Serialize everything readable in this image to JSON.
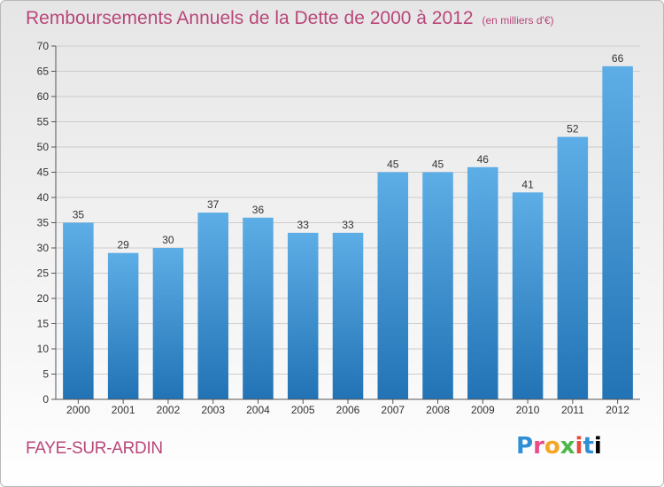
{
  "page": {
    "title": "Remboursements Annuels de la Dette de 2000 à 2012",
    "unit": "(en milliers d'€)",
    "commune": "FAYE-SUR-ARDIN",
    "logo": [
      "P",
      "r",
      "o",
      "x",
      "i",
      "t",
      "i"
    ]
  },
  "colors": {
    "title": "#b8477a",
    "bar_top": "#5dade6",
    "bar_bottom": "#2273b5",
    "grid": "#cccccc"
  },
  "chart_data": {
    "type": "bar",
    "categories": [
      "2000",
      "2001",
      "2002",
      "2003",
      "2004",
      "2005",
      "2006",
      "2007",
      "2008",
      "2009",
      "2010",
      "2011",
      "2012"
    ],
    "values": [
      35,
      29,
      30,
      37,
      36,
      33,
      33,
      45,
      45,
      46,
      41,
      52,
      66
    ],
    "title": "Remboursements Annuels de la Dette de 2000 à 2012",
    "xlabel": "",
    "ylabel": "",
    "ylim": [
      0,
      70
    ],
    "yticks": [
      0,
      5,
      10,
      15,
      20,
      25,
      30,
      35,
      40,
      45,
      50,
      55,
      60,
      65,
      70
    ],
    "grid": true,
    "data_labels": true
  }
}
